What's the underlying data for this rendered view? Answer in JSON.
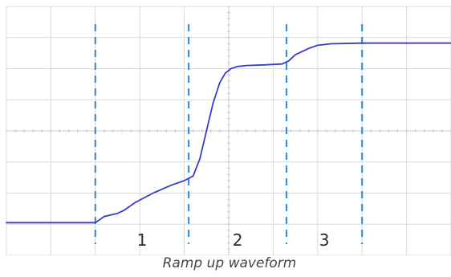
{
  "caption": "Ramp up waveform",
  "chart_data": {
    "type": "line",
    "title": "",
    "xlabel": "",
    "ylabel": "",
    "grid": true,
    "grid_divisions": {
      "x": 10,
      "y": 8
    },
    "xlim": [
      0,
      10
    ],
    "ylim": [
      0,
      8
    ],
    "colors": {
      "trace": "#3a3acd",
      "markers": "#3d8fcf",
      "grid": "#d9d9d9"
    },
    "markers_x": [
      2.0,
      4.1,
      6.3,
      8.0
    ],
    "phase_labels": [
      {
        "text": "1",
        "x": 3.05
      },
      {
        "text": "2",
        "x": 5.2
      },
      {
        "text": "3",
        "x": 7.15
      }
    ],
    "series": [
      {
        "x": [
          0,
          1.0,
          2.0,
          2.05,
          2.2,
          2.5,
          2.65,
          2.9,
          3.3,
          3.7,
          4.0,
          4.2,
          4.35,
          4.5,
          4.65,
          4.8,
          4.92,
          5.05,
          5.2,
          5.4,
          5.8,
          6.2,
          6.35,
          6.5,
          6.8,
          7.0,
          7.3,
          8.0,
          9.0,
          10.0
        ],
        "y": [
          1.05,
          1.05,
          1.05,
          1.1,
          1.25,
          1.35,
          1.45,
          1.7,
          2.0,
          2.25,
          2.4,
          2.55,
          3.1,
          4.0,
          4.9,
          5.55,
          5.85,
          6.0,
          6.07,
          6.1,
          6.12,
          6.15,
          6.25,
          6.45,
          6.65,
          6.75,
          6.8,
          6.82,
          6.82,
          6.82
        ]
      }
    ]
  }
}
